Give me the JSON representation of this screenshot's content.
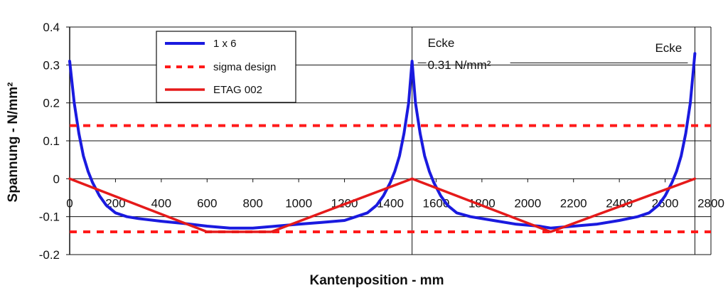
{
  "chart_data": {
    "type": "line",
    "xlabel": "Kantenposition - mm",
    "ylabel": "Spannung - N/mm²",
    "xlim": [
      0,
      2800
    ],
    "ylim": [
      -0.2,
      0.4
    ],
    "x_ticks": [
      "0",
      "200",
      "400",
      "600",
      "800",
      "1000",
      "1200",
      "1400",
      "1600",
      "1800",
      "2000",
      "2200",
      "2400",
      "2600",
      "2800"
    ],
    "y_ticks": [
      "0.4",
      "0.3",
      "0.2",
      "0.1",
      "0",
      "-0.1",
      "-0.2"
    ],
    "grid": true,
    "legend_position": "top-left",
    "series": [
      {
        "name": "1 x 6",
        "color": "#1a1adf",
        "style": "solid",
        "points": [
          [
            0,
            0.31
          ],
          [
            20,
            0.2
          ],
          [
            40,
            0.12
          ],
          [
            60,
            0.06
          ],
          [
            80,
            0.02
          ],
          [
            100,
            -0.01
          ],
          [
            130,
            -0.045
          ],
          [
            160,
            -0.07
          ],
          [
            200,
            -0.09
          ],
          [
            250,
            -0.1
          ],
          [
            300,
            -0.105
          ],
          [
            400,
            -0.112
          ],
          [
            500,
            -0.118
          ],
          [
            600,
            -0.125
          ],
          [
            700,
            -0.13
          ],
          [
            800,
            -0.13
          ],
          [
            900,
            -0.125
          ],
          [
            1000,
            -0.12
          ],
          [
            1100,
            -0.115
          ],
          [
            1200,
            -0.11
          ],
          [
            1250,
            -0.1
          ],
          [
            1300,
            -0.09
          ],
          [
            1340,
            -0.07
          ],
          [
            1370,
            -0.045
          ],
          [
            1400,
            -0.01
          ],
          [
            1420,
            0.02
          ],
          [
            1440,
            0.06
          ],
          [
            1460,
            0.12
          ],
          [
            1480,
            0.2
          ],
          [
            1495,
            0.31
          ],
          [
            1510,
            0.2
          ],
          [
            1530,
            0.12
          ],
          [
            1550,
            0.06
          ],
          [
            1570,
            0.02
          ],
          [
            1590,
            -0.01
          ],
          [
            1620,
            -0.045
          ],
          [
            1650,
            -0.07
          ],
          [
            1690,
            -0.09
          ],
          [
            1750,
            -0.1
          ],
          [
            1850,
            -0.11
          ],
          [
            1950,
            -0.12
          ],
          [
            2050,
            -0.125
          ],
          [
            2100,
            -0.13
          ],
          [
            2200,
            -0.125
          ],
          [
            2300,
            -0.12
          ],
          [
            2400,
            -0.11
          ],
          [
            2480,
            -0.1
          ],
          [
            2530,
            -0.09
          ],
          [
            2570,
            -0.07
          ],
          [
            2600,
            -0.045
          ],
          [
            2630,
            -0.01
          ],
          [
            2650,
            0.02
          ],
          [
            2670,
            0.06
          ],
          [
            2690,
            0.12
          ],
          [
            2710,
            0.2
          ],
          [
            2730,
            0.33
          ]
        ]
      },
      {
        "name": "sigma design",
        "color": "#ff1a1a",
        "style": "dashed",
        "segments": [
          [
            [
              0,
              0.14
            ],
            [
              2800,
              0.14
            ]
          ],
          [
            [
              0,
              -0.14
            ],
            [
              2800,
              -0.14
            ]
          ]
        ]
      },
      {
        "name": "ETAG 002",
        "color": "#e51a1a",
        "style": "solid",
        "points": [
          [
            0,
            0
          ],
          [
            600,
            -0.14
          ],
          [
            880,
            -0.14
          ],
          [
            1495,
            0
          ],
          [
            2100,
            -0.14
          ],
          [
            2730,
            0
          ]
        ]
      }
    ],
    "vertical_lines": [
      1495,
      2730
    ],
    "annotations": [
      {
        "text": "Ecke",
        "x": 1495,
        "y": 0.36
      },
      {
        "text": "0.31 N/mm²",
        "x": 1495,
        "y": 0.3
      },
      {
        "text": "Ecke",
        "x": 2730,
        "y": 0.34
      }
    ]
  }
}
